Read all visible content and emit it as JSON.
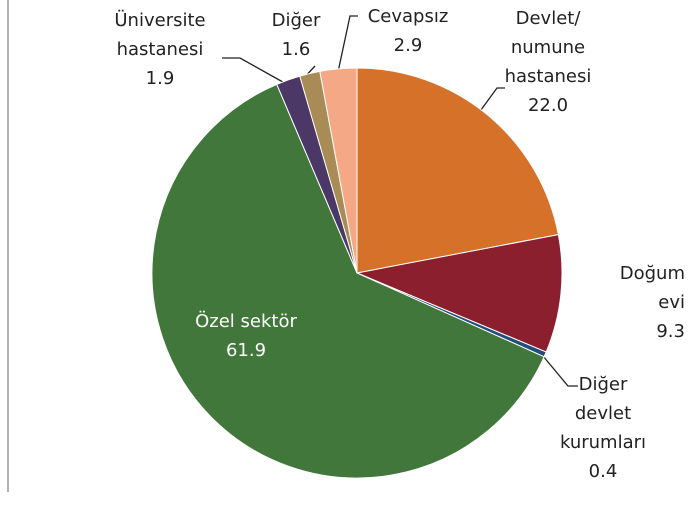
{
  "chart_data": {
    "type": "pie",
    "categories": [
      "Devlet/\nnumune\nhastanesi",
      "Doğum evi",
      "Diğer\ndevlet\nkurumları",
      "Özel sektör",
      "Üniversite\nhastanesi",
      "Diğer",
      "Cevapsız"
    ],
    "values": [
      22.0,
      9.3,
      0.4,
      61.9,
      1.9,
      1.6,
      2.9
    ],
    "value_labels": [
      "22.0",
      "9.3",
      "0.4",
      "61.9",
      "1.9",
      "1.6",
      "2.9"
    ],
    "colors": [
      "#d57129",
      "#8b1f2d",
      "#1f4e79",
      "#41773a",
      "#4b3866",
      "#a88b55",
      "#f4a886"
    ]
  }
}
